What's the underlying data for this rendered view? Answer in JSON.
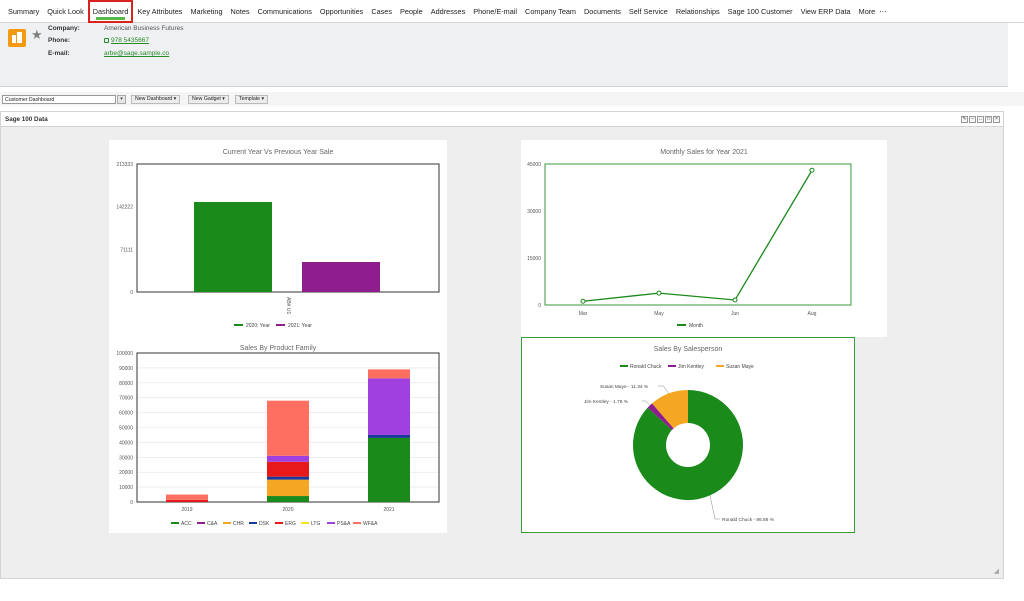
{
  "nav": {
    "tabs": [
      "Summary",
      "Quick Look",
      "Dashboard",
      "Key Attributes",
      "Marketing",
      "Notes",
      "Communications",
      "Opportunities",
      "Cases",
      "People",
      "Addresses",
      "Phone/E-mail",
      "Company Team",
      "Documents",
      "Self Service",
      "Relationships",
      "Sage 100 Customer",
      "View ERP Data",
      "More"
    ],
    "more_icon": "ellipsis-icon",
    "active": "Dashboard"
  },
  "header": {
    "company_label": "Company:",
    "company_value": "American Business Futures",
    "phone_label": "Phone:",
    "phone_value": "978 5435667",
    "email_label": "E-mail:",
    "email_value": "arbe@sage.sample.co"
  },
  "toolbar": {
    "dashboard_select": "Customer Dashboard",
    "new_dashboard": "New Dashboard",
    "new_gadget": "New Gadget",
    "template": "Template"
  },
  "panel": {
    "title": "Sage 100 Data"
  },
  "colors": {
    "green": "#1a8a1a",
    "purple": "#8e1e8e",
    "orange": "#f5a623",
    "accent": "#54b948",
    "active_border": "#d9231f"
  },
  "chart_data": [
    {
      "type": "bar",
      "title": "Current Year Vs Previous Year Sale",
      "categories": [
        "AB# U1"
      ],
      "series": [
        {
          "name": "2020: Year",
          "values": [
            150000
          ],
          "color": "#1a8a1a"
        },
        {
          "name": "2021: Year",
          "values": [
            50000
          ],
          "color": "#8e1e8e"
        }
      ],
      "yticks": [
        "0",
        "71111",
        "142222",
        "213333"
      ],
      "ylim": [
        0,
        213333
      ]
    },
    {
      "type": "line",
      "title": "Monthly Sales for Year 2021",
      "x": [
        "Mar",
        "May",
        "Jun",
        "Aug"
      ],
      "series": [
        {
          "name": "Month",
          "values": [
            1200,
            3800,
            1600,
            43000
          ],
          "color": "#1a8a1a"
        }
      ],
      "yticks": [
        "0",
        "15000",
        "30000",
        "45000"
      ],
      "ylim": [
        0,
        45000
      ]
    },
    {
      "type": "bar",
      "stacked": true,
      "title": "Sales By Product Family",
      "categories": [
        "2019",
        "2020",
        "2021"
      ],
      "series": [
        {
          "name": "ACC",
          "values": [
            0,
            4000,
            43000
          ],
          "color": "#1a8a1a"
        },
        {
          "name": "C&A",
          "values": [
            0,
            0,
            0
          ],
          "color": "#8e1e8e"
        },
        {
          "name": "CHR",
          "values": [
            0,
            11000,
            0
          ],
          "color": "#f5a623"
        },
        {
          "name": "DSK",
          "values": [
            0,
            2000,
            2000
          ],
          "color": "#1a3a9a"
        },
        {
          "name": "ERG",
          "values": [
            1500,
            10000,
            0
          ],
          "color": "#e8191b"
        },
        {
          "name": "LTG",
          "values": [
            0,
            0,
            0
          ],
          "color": "#f7e31b"
        },
        {
          "name": "PS&A",
          "values": [
            0,
            4000,
            38000
          ],
          "color": "#a040e0"
        },
        {
          "name": "WF&A",
          "values": [
            3500,
            37000,
            6000
          ],
          "color": "#ff6f61"
        }
      ],
      "yticks": [
        "0",
        "10000",
        "20000",
        "30000",
        "40000",
        "50000",
        "60000",
        "70000",
        "80000",
        "90000",
        "100000"
      ],
      "ylim": [
        0,
        100000
      ]
    },
    {
      "type": "pie",
      "title": "Sales By Salesperson",
      "slices": [
        {
          "name": "Ronald Chuck",
          "value": 86.88,
          "label": "Ronald Chuck - 86.88 %",
          "color": "#1a8a1a"
        },
        {
          "name": "Jim Kentley",
          "value": 1.78,
          "label": "Jim Kentley - 1.78 %",
          "color": "#8e1e8e"
        },
        {
          "name": "Susan Maye",
          "value": 11.34,
          "label": "Susan Maye - 11.34 %",
          "color": "#f5a623"
        }
      ]
    }
  ]
}
